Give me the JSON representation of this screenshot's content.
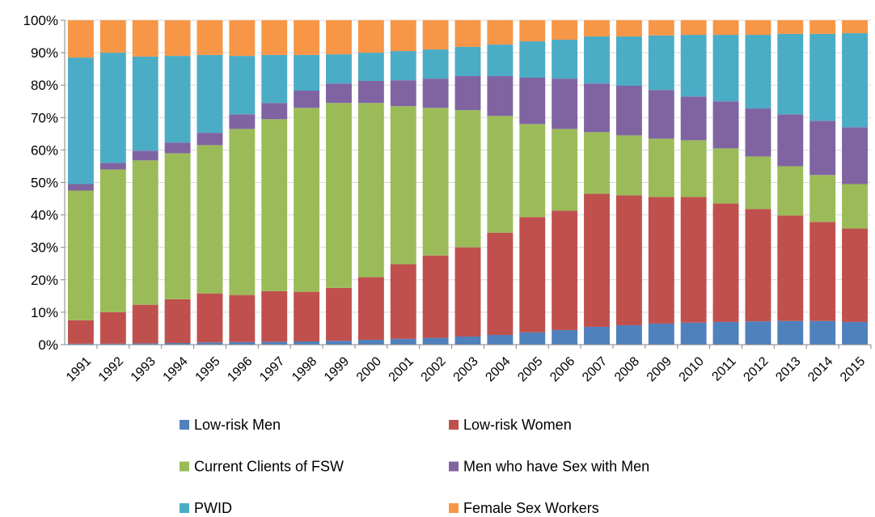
{
  "chart_data": {
    "type": "stacked_bar_100",
    "categories": [
      "1991",
      "1992",
      "1993",
      "1994",
      "1995",
      "1996",
      "1997",
      "1998",
      "1999",
      "2000",
      "2001",
      "2002",
      "2003",
      "2004",
      "2005",
      "2006",
      "2007",
      "2008",
      "2009",
      "2010",
      "2011",
      "2012",
      "2013",
      "2014",
      "2015"
    ],
    "series": [
      {
        "name": "Low-risk Men",
        "color": "#4f81bd",
        "values": [
          0.3,
          0.3,
          0.4,
          0.5,
          0.7,
          0.8,
          0.9,
          1.0,
          1.2,
          1.5,
          1.8,
          2.1,
          2.5,
          3.0,
          3.8,
          4.5,
          5.5,
          6.0,
          6.5,
          6.8,
          7.0,
          7.2,
          7.3,
          7.3,
          7.0
        ]
      },
      {
        "name": "Low-risk Women",
        "color": "#c0504d",
        "values": [
          7.2,
          9.7,
          11.9,
          13.5,
          15.1,
          14.5,
          15.6,
          15.3,
          16.3,
          19.3,
          23.0,
          25.4,
          27.5,
          31.5,
          35.5,
          36.8,
          41.0,
          40.0,
          39.0,
          38.7,
          36.5,
          34.6,
          32.5,
          30.5,
          28.8
        ]
      },
      {
        "name": "Current Clients of FSW",
        "color": "#9bbb59",
        "values": [
          40.0,
          44.0,
          44.5,
          45.0,
          45.7,
          51.2,
          53.0,
          56.7,
          57.0,
          53.7,
          48.7,
          45.5,
          42.3,
          36.0,
          28.7,
          25.2,
          19.0,
          18.5,
          18.0,
          17.5,
          17.0,
          16.2,
          15.2,
          14.5,
          13.7
        ]
      },
      {
        "name": "Men who have Sex with Men",
        "color": "#8064a2",
        "values": [
          2.0,
          2.0,
          3.0,
          3.3,
          3.8,
          4.5,
          5.0,
          5.3,
          6.0,
          6.8,
          8.0,
          9.0,
          10.5,
          12.3,
          14.3,
          15.5,
          15.0,
          15.3,
          15.0,
          13.5,
          14.5,
          14.8,
          16.0,
          16.7,
          17.5
        ]
      },
      {
        "name": "PWID",
        "color": "#4bacc6",
        "values": [
          39.0,
          34.0,
          29.0,
          26.7,
          24.0,
          18.0,
          14.8,
          11.0,
          9.0,
          8.7,
          9.0,
          9.0,
          9.0,
          9.7,
          11.2,
          12.0,
          14.5,
          15.2,
          16.8,
          19.0,
          20.5,
          22.7,
          24.8,
          26.8,
          29.0
        ]
      },
      {
        "name": "Female Sex Workers",
        "color": "#f79646",
        "values": [
          11.5,
          10.0,
          11.2,
          11.0,
          10.7,
          11.0,
          10.7,
          10.7,
          10.5,
          10.0,
          9.5,
          9.0,
          8.2,
          7.5,
          6.5,
          6.0,
          5.0,
          5.0,
          4.7,
          4.5,
          4.5,
          4.5,
          4.2,
          4.2,
          4.0
        ]
      }
    ],
    "ylim": [
      0,
      100
    ],
    "yticks": [
      {
        "value": 0,
        "label": "0%"
      },
      {
        "value": 10,
        "label": "10%"
      },
      {
        "value": 20,
        "label": "20%"
      },
      {
        "value": 30,
        "label": "30%"
      },
      {
        "value": 40,
        "label": "40%"
      },
      {
        "value": 50,
        "label": "50%"
      },
      {
        "value": 60,
        "label": "60%"
      },
      {
        "value": 70,
        "label": "70%"
      },
      {
        "value": 80,
        "label": "80%"
      },
      {
        "value": 90,
        "label": "90%"
      },
      {
        "value": 100,
        "label": "100%"
      }
    ],
    "grid": true
  }
}
